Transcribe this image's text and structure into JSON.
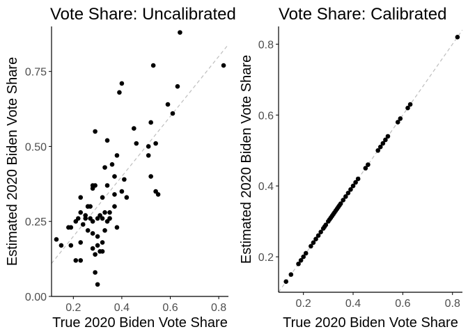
{
  "chart_data": [
    {
      "type": "scatter",
      "title": "Vote Share: Uncalibrated",
      "xlabel": "True 2020 Biden Vote Share",
      "ylabel": "Estimated 2020 Biden Vote Share",
      "xlim": [
        0.11,
        0.84
      ],
      "ylim": [
        0.0,
        0.9
      ],
      "xticks": [
        0.2,
        0.4,
        0.6,
        0.8
      ],
      "xtick_labels": [
        "0.2",
        "0.4",
        "0.6",
        "0.8"
      ],
      "yticks": [
        0.0,
        0.25,
        0.5,
        0.75
      ],
      "ytick_labels": [
        "0.00",
        "0.25",
        "0.50",
        "0.75"
      ],
      "grid": false,
      "reference_line": "y = x (dashed grey)",
      "points": [
        [
          0.13,
          0.19
        ],
        [
          0.15,
          0.17
        ],
        [
          0.18,
          0.23
        ],
        [
          0.19,
          0.23
        ],
        [
          0.19,
          0.17
        ],
        [
          0.21,
          0.25
        ],
        [
          0.21,
          0.12
        ],
        [
          0.22,
          0.26
        ],
        [
          0.23,
          0.28
        ],
        [
          0.23,
          0.33
        ],
        [
          0.23,
          0.18
        ],
        [
          0.23,
          0.12
        ],
        [
          0.24,
          0.24
        ],
        [
          0.25,
          0.27
        ],
        [
          0.25,
          0.26
        ],
        [
          0.26,
          0.3
        ],
        [
          0.26,
          0.3
        ],
        [
          0.26,
          0.22
        ],
        [
          0.27,
          0.3
        ],
        [
          0.27,
          0.26
        ],
        [
          0.28,
          0.36
        ],
        [
          0.28,
          0.37
        ],
        [
          0.28,
          0.25
        ],
        [
          0.28,
          0.21
        ],
        [
          0.28,
          0.16
        ],
        [
          0.29,
          0.55
        ],
        [
          0.29,
          0.37
        ],
        [
          0.29,
          0.14
        ],
        [
          0.29,
          0.08
        ],
        [
          0.3,
          0.17
        ],
        [
          0.3,
          0.2
        ],
        [
          0.3,
          0.26
        ],
        [
          0.3,
          0.04
        ],
        [
          0.31,
          0.27
        ],
        [
          0.31,
          0.15
        ],
        [
          0.32,
          0.33
        ],
        [
          0.32,
          0.15
        ],
        [
          0.32,
          0.18
        ],
        [
          0.32,
          0.26
        ],
        [
          0.33,
          0.43
        ],
        [
          0.33,
          0.28
        ],
        [
          0.33,
          0.22
        ],
        [
          0.34,
          0.52
        ],
        [
          0.34,
          0.37
        ],
        [
          0.34,
          0.25
        ],
        [
          0.35,
          0.26
        ],
        [
          0.35,
          0.26
        ],
        [
          0.35,
          0.28
        ],
        [
          0.36,
          0.44
        ],
        [
          0.37,
          0.4
        ],
        [
          0.37,
          0.34
        ],
        [
          0.37,
          0.3
        ],
        [
          0.38,
          0.47
        ],
        [
          0.38,
          0.23
        ],
        [
          0.39,
          0.68
        ],
        [
          0.4,
          0.71
        ],
        [
          0.4,
          0.35
        ],
        [
          0.41,
          0.39
        ],
        [
          0.42,
          0.33
        ],
        [
          0.45,
          0.56
        ],
        [
          0.46,
          0.51
        ],
        [
          0.51,
          0.5
        ],
        [
          0.51,
          0.47
        ],
        [
          0.52,
          0.58
        ],
        [
          0.52,
          0.4
        ],
        [
          0.53,
          0.77
        ],
        [
          0.54,
          0.51
        ],
        [
          0.54,
          0.35
        ],
        [
          0.55,
          0.34
        ],
        [
          0.59,
          0.64
        ],
        [
          0.61,
          0.61
        ],
        [
          0.63,
          0.7
        ],
        [
          0.64,
          0.88
        ],
        [
          0.82,
          0.77
        ]
      ]
    },
    {
      "type": "scatter",
      "title": "Vote Share: Calibrated",
      "xlabel": "True 2020 Biden Vote Share",
      "ylabel": "Estimated 2020 Biden Vote Share",
      "xlim": [
        0.1,
        0.84
      ],
      "ylim": [
        0.1,
        0.85
      ],
      "xticks": [
        0.2,
        0.4,
        0.6,
        0.8
      ],
      "xtick_labels": [
        "0.2",
        "0.4",
        "0.6",
        "0.8"
      ],
      "yticks": [
        0.2,
        0.4,
        0.6,
        0.8
      ],
      "ytick_labels": [
        "0.2",
        "0.4",
        "0.6",
        "0.8"
      ],
      "grid": false,
      "reference_line": "y = x (dashed grey)",
      "points": [
        [
          0.13,
          0.13
        ],
        [
          0.15,
          0.15
        ],
        [
          0.18,
          0.18
        ],
        [
          0.19,
          0.19
        ],
        [
          0.2,
          0.2
        ],
        [
          0.21,
          0.21
        ],
        [
          0.23,
          0.23
        ],
        [
          0.24,
          0.24
        ],
        [
          0.25,
          0.25
        ],
        [
          0.26,
          0.26
        ],
        [
          0.27,
          0.27
        ],
        [
          0.28,
          0.28
        ],
        [
          0.285,
          0.285
        ],
        [
          0.29,
          0.29
        ],
        [
          0.3,
          0.3
        ],
        [
          0.305,
          0.305
        ],
        [
          0.31,
          0.31
        ],
        [
          0.315,
          0.315
        ],
        [
          0.32,
          0.32
        ],
        [
          0.325,
          0.325
        ],
        [
          0.33,
          0.33
        ],
        [
          0.335,
          0.335
        ],
        [
          0.34,
          0.34
        ],
        [
          0.345,
          0.345
        ],
        [
          0.35,
          0.35
        ],
        [
          0.36,
          0.36
        ],
        [
          0.37,
          0.37
        ],
        [
          0.38,
          0.38
        ],
        [
          0.39,
          0.39
        ],
        [
          0.4,
          0.4
        ],
        [
          0.41,
          0.41
        ],
        [
          0.42,
          0.42
        ],
        [
          0.45,
          0.45
        ],
        [
          0.46,
          0.46
        ],
        [
          0.5,
          0.5
        ],
        [
          0.51,
          0.51
        ],
        [
          0.52,
          0.52
        ],
        [
          0.53,
          0.53
        ],
        [
          0.54,
          0.54
        ],
        [
          0.58,
          0.58
        ],
        [
          0.59,
          0.59
        ],
        [
          0.62,
          0.62
        ],
        [
          0.63,
          0.63
        ],
        [
          0.82,
          0.82
        ]
      ]
    }
  ],
  "colors": {
    "points": "#000000",
    "reference_line": "#bdbdbd",
    "axis_line": "#000000",
    "tick_label": "#4d4d4d"
  }
}
